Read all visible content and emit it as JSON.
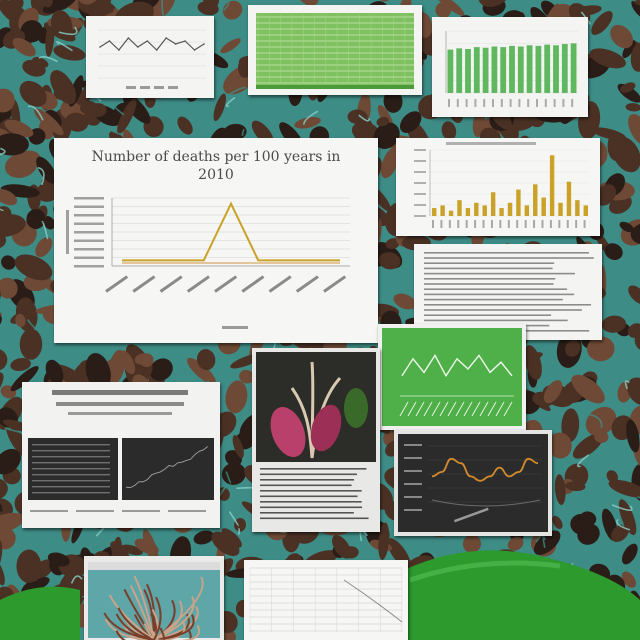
{
  "scene": {
    "description_free": true,
    "colors": {
      "bark_dark": "#2a1d17",
      "bark_mid": "#4a3124",
      "bark_light": "#6e4a36",
      "teal_crack": "#3e8c86",
      "teal_light": "#8ad0c8",
      "green_field": "#2c9a2c",
      "card_white": "#f4f4f2",
      "chart_gold": "#c9a227",
      "chart_green": "#5fb85f",
      "dark_panel": "#2b2b2b",
      "leaf_pink": "#b8406a",
      "orange_line": "#d48a2a"
    }
  },
  "main_chart": {
    "title_line1": "Number of deaths per 100 years in",
    "title_line2": "2010",
    "chart_data": {
      "type": "line",
      "title": "Number of deaths per 100 years in 2010",
      "categories": [
        "1",
        "2",
        "3",
        "4",
        "5",
        "6",
        "7",
        "8",
        "9"
      ],
      "values": [
        2,
        2,
        2,
        2,
        22,
        2,
        2,
        2,
        2
      ],
      "xlabel": "",
      "ylabel": "",
      "ylim": [
        0,
        24
      ],
      "grid": true
    }
  },
  "small_bar_chart": {
    "chart_data": {
      "type": "bar",
      "values": [
        3,
        4,
        2,
        6,
        3,
        5,
        4,
        9,
        3,
        5,
        10,
        4,
        12,
        7,
        23,
        5,
        13,
        6,
        4
      ]
    }
  },
  "green_bar_chart": {
    "chart_data": {
      "type": "bar",
      "values": [
        70,
        72,
        71,
        74,
        73,
        75,
        74,
        76,
        75,
        77,
        76,
        78,
        77,
        79,
        80
      ]
    }
  },
  "line_thumb": {
    "chart_data": {
      "type": "line",
      "values": [
        5,
        7,
        4,
        8,
        5,
        7,
        4,
        8,
        6,
        7,
        4,
        6
      ]
    }
  },
  "green_wave_panel": {
    "chart_data": {
      "type": "line",
      "values": [
        3,
        8,
        4,
        9,
        3,
        8,
        5,
        9,
        4,
        7,
        3
      ]
    }
  },
  "orange_wave_panel": {
    "chart_data": {
      "type": "line",
      "values": [
        4,
        5,
        8,
        7,
        4,
        3,
        4,
        6,
        4,
        5,
        8,
        7
      ]
    }
  }
}
